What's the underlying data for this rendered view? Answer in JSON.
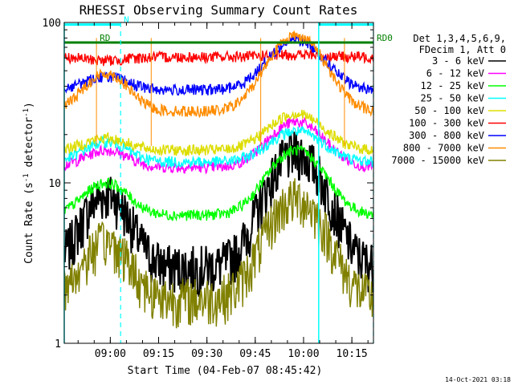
{
  "chart_data": {
    "type": "line",
    "title": "RHESSI Observing Summary Count Rates",
    "xlabel": "Start Time (04-Feb-07 08:45:42)",
    "ylabel_main": "Count Rate (s",
    "ylabel_sup": "-1",
    "ylabel_rest": " detector",
    "ylabel_end": ")",
    "y_scale": "log",
    "ylim": [
      1,
      100
    ],
    "x_unit": "minutes since 08:45:42",
    "xlim": [
      0,
      96
    ],
    "y_ticks": [
      {
        "v": 1,
        "label": "1"
      },
      {
        "v": 10,
        "label": "10"
      },
      {
        "v": 100,
        "label": "100"
      }
    ],
    "x_ticks": [
      {
        "v": 14.3,
        "label": "09:00"
      },
      {
        "v": 29.3,
        "label": "09:15"
      },
      {
        "v": 44.3,
        "label": "09:30"
      },
      {
        "v": 59.3,
        "label": "09:45"
      },
      {
        "v": 74.3,
        "label": "10:00"
      },
      {
        "v": 89.3,
        "label": "10:15"
      }
    ],
    "legend_header": [
      "Det 1,3,4,5,6,9,",
      "FDecim 1, Att 0"
    ],
    "legend_position": "right",
    "series": [
      {
        "name": "3 - 6 keV",
        "color": "#000000",
        "base": 3.0,
        "peak": 15.5,
        "orbit": 8.5
      },
      {
        "name": "6 - 12 keV",
        "color": "#ff00ff",
        "base": 12.5,
        "peak": 24,
        "orbit": 16
      },
      {
        "name": "12 - 25 keV",
        "color": "#00ff00",
        "base": 6.3,
        "peak": 16,
        "orbit": 10
      },
      {
        "name": "25 - 50 keV",
        "color": "#00ffff",
        "base": 13.5,
        "peak": 21,
        "orbit": 18
      },
      {
        "name": "50 - 100 keV",
        "color": "#dddd00",
        "base": 16,
        "peak": 27,
        "orbit": 19
      },
      {
        "name": "100 - 300 keV",
        "color": "#ff0000",
        "base": 61,
        "peak": 63,
        "orbit": 58
      },
      {
        "name": "300 - 800 keV",
        "color": "#0000ff",
        "base": 38,
        "peak": 78,
        "orbit": 46
      },
      {
        "name": "800 - 7000 keV",
        "color": "#ff8c00",
        "base": 28,
        "peak": 83,
        "orbit": 48
      },
      {
        "name": "7000 - 15000 keV",
        "color": "#808000",
        "base": 1.9,
        "peak": 8,
        "orbit": 4.3
      }
    ],
    "flags": [
      {
        "label": "N",
        "color": "#00ffff",
        "x_start": 0,
        "x_end": 17.5,
        "y": 97
      },
      {
        "label": "",
        "color": "#00ffff",
        "x_start": 79,
        "x_end": 96,
        "y": 97
      },
      {
        "label": "RD0",
        "color": "#008000",
        "x_start": 0,
        "x_end": 96,
        "y": 75
      },
      {
        "label": "RD",
        "color": "#008000",
        "x_start": 0,
        "x_end": 10,
        "y": 75
      }
    ],
    "night_boundaries": [
      0,
      79
    ],
    "saa_dashed": [
      17.5,
      96
    ],
    "attenuator_markers": [
      10,
      27,
      61,
      87
    ],
    "grid": false
  },
  "footer_timestamp": "14-Oct-2021 03:18"
}
